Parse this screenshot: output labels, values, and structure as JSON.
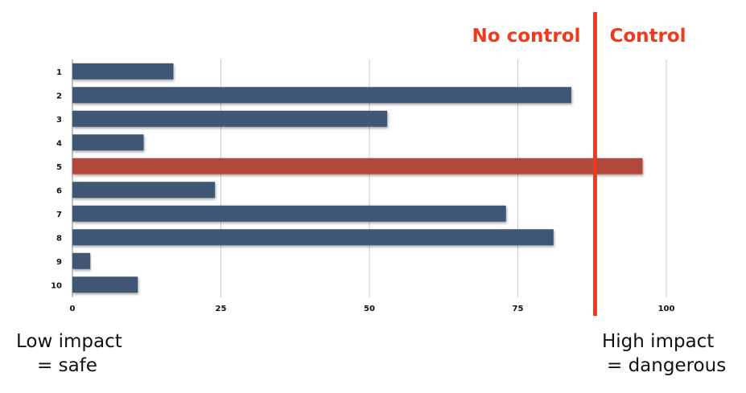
{
  "chart_data": {
    "type": "bar",
    "orientation": "horizontal",
    "categories": [
      "1",
      "2",
      "3",
      "4",
      "5",
      "6",
      "7",
      "8",
      "9",
      "10"
    ],
    "values": [
      17,
      84,
      53,
      12,
      96,
      24,
      73,
      81,
      3,
      11
    ],
    "highlight_index": 4,
    "bar_color": "#415674",
    "highlight_color": "#b2463a",
    "threshold_color": "#ef3a1d",
    "xlim": [
      0,
      100
    ],
    "xticks": [
      "0",
      "25",
      "50",
      "75",
      "100"
    ],
    "xtick_values": [
      0,
      25,
      50,
      75,
      100
    ],
    "grid": true,
    "threshold": {
      "value": 88,
      "left_label": "No control",
      "right_label": "Control"
    }
  },
  "captions": {
    "left": {
      "line1": "Low impact",
      "line2": "= safe"
    },
    "right": {
      "line1": "High impact",
      "line2": "= dangerous"
    }
  }
}
